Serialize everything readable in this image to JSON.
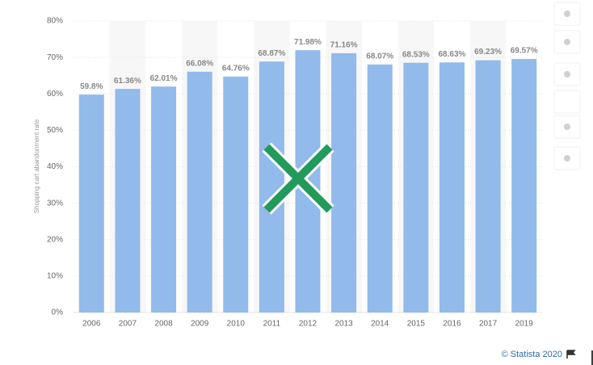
{
  "chart_data": {
    "type": "bar",
    "y_label": "Shopping cart abandonment rate",
    "categories": [
      "2006",
      "2007",
      "2008",
      "2009",
      "2010",
      "2011",
      "2012",
      "2013",
      "2014",
      "2015",
      "2016",
      "2017",
      "2019"
    ],
    "values": [
      59.8,
      61.36,
      62.01,
      66.08,
      64.76,
      68.87,
      71.98,
      71.16,
      68.07,
      68.53,
      68.63,
      69.23,
      69.57
    ],
    "value_labels": [
      "59.8%",
      "61.36%",
      "62.01%",
      "66.08%",
      "64.76%",
      "68.87%",
      "71.98%",
      "71.16%",
      "68.07%",
      "68.53%",
      "68.63%",
      "69.23%",
      "69.57%"
    ],
    "color": "#92baea",
    "ylim": [
      0,
      80
    ],
    "yticks": [
      {
        "value": 0,
        "label": "0%"
      },
      {
        "value": 10,
        "label": "10%"
      },
      {
        "value": 20,
        "label": "20%"
      },
      {
        "value": 30,
        "label": "30%"
      },
      {
        "value": 40,
        "label": "40%"
      },
      {
        "value": 50,
        "label": "50%"
      },
      {
        "value": 60,
        "label": "60%"
      },
      {
        "value": 70,
        "label": "70%"
      },
      {
        "value": 80,
        "label": "80%"
      }
    ],
    "grid": true,
    "source": "© Statista 2020"
  }
}
